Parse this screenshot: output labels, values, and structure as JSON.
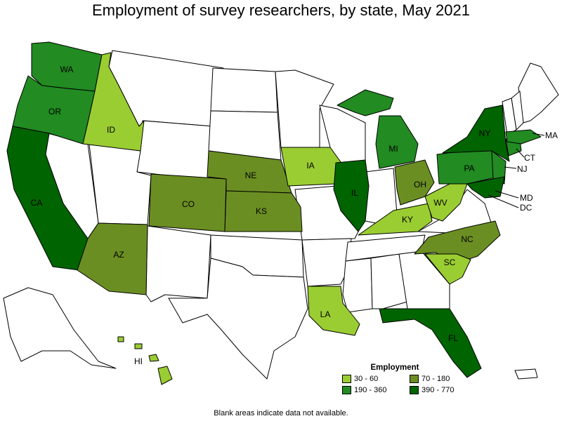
{
  "title": "Employment of survey researchers, by state, May 2021",
  "footnote": "Blank areas indicate data not available.",
  "legend": {
    "title": "Employment",
    "items": [
      {
        "label": "30 - 60",
        "color": "#9acd32"
      },
      {
        "label": "70 - 180",
        "color": "#6b8e23"
      },
      {
        "label": "190 - 360",
        "color": "#228b22"
      },
      {
        "label": "390 - 770",
        "color": "#006400"
      }
    ]
  },
  "states": {
    "WA": {
      "label": "WA",
      "bin": "190 - 360"
    },
    "OR": {
      "label": "OR",
      "bin": "190 - 360"
    },
    "CA": {
      "label": "CA",
      "bin": "390 - 770"
    },
    "ID": {
      "label": "ID",
      "bin": "30 - 60"
    },
    "AZ": {
      "label": "AZ",
      "bin": "70 - 180"
    },
    "CO": {
      "label": "CO",
      "bin": "70 - 180"
    },
    "NE": {
      "label": "NE",
      "bin": "70 - 180"
    },
    "KS": {
      "label": "KS",
      "bin": "70 - 180"
    },
    "IA": {
      "label": "IA",
      "bin": "30 - 60"
    },
    "IL": {
      "label": "IL",
      "bin": "390 - 770"
    },
    "MI": {
      "label": "MI",
      "bin": "190 - 360"
    },
    "OH": {
      "label": "OH",
      "bin": "70 - 180"
    },
    "KY": {
      "label": "KY",
      "bin": "30 - 60"
    },
    "WV": {
      "label": "WV",
      "bin": "30 - 60"
    },
    "PA": {
      "label": "PA",
      "bin": "190 - 360"
    },
    "NY": {
      "label": "NY",
      "bin": "390 - 770"
    },
    "NJ": {
      "label": "NJ",
      "bin": "190 - 360"
    },
    "MD": {
      "label": "MD",
      "bin": "390 - 770"
    },
    "DC": {
      "label": "DC",
      "bin": "390 - 770"
    },
    "CT": {
      "label": "CT",
      "bin": "190 - 360"
    },
    "MA": {
      "label": "MA",
      "bin": "190 - 360"
    },
    "NC": {
      "label": "NC",
      "bin": "70 - 180"
    },
    "SC": {
      "label": "SC",
      "bin": "30 - 60"
    },
    "LA": {
      "label": "LA",
      "bin": "30 - 60"
    },
    "FL": {
      "label": "FL",
      "bin": "390 - 770"
    },
    "HI": {
      "label": "HI",
      "bin": "30 - 60"
    }
  }
}
